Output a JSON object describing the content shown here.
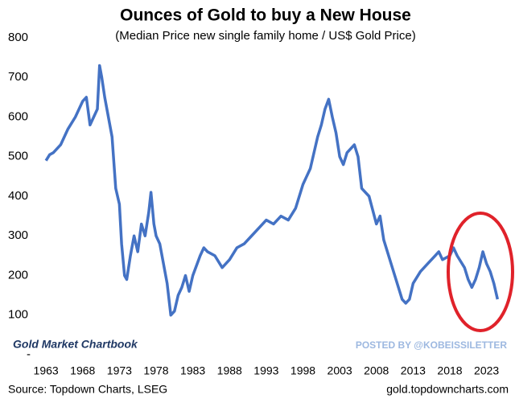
{
  "chart_data": {
    "type": "line",
    "title": "Ounces of Gold to buy a New House",
    "subtitle": "(Median Price new single family home / US$ Gold Price)",
    "brand": "Gold Market Chartbook",
    "watermark": "POSTED BY @KOBEISSILETTER",
    "source": "Source: Topdown Charts, LSEG",
    "website": "gold.topdowncharts.com",
    "color": "#4472c4",
    "grid": false,
    "xlim": [
      1962,
      2026
    ],
    "xticks": [
      1963,
      1968,
      1973,
      1978,
      1983,
      1988,
      1993,
      1998,
      2003,
      2008,
      2013,
      2018,
      2023
    ],
    "ylim": [
      0,
      800
    ],
    "yticks": [
      {
        "value": 0,
        "label": "-"
      },
      100,
      200,
      300,
      400,
      500,
      600,
      700,
      800
    ],
    "x": [
      1963,
      1963.5,
      1964,
      1965,
      1966,
      1967,
      1968,
      1968.5,
      1969,
      1969.5,
      1970,
      1970.3,
      1970.6,
      1971,
      1971.5,
      1972,
      1972.5,
      1973,
      1973.3,
      1973.7,
      1974,
      1974.5,
      1975,
      1975.5,
      1976,
      1976.5,
      1977,
      1977.3,
      1977.7,
      1978,
      1978.5,
      1979,
      1979.5,
      1980,
      1980.5,
      1981,
      1981.5,
      1982,
      1982.5,
      1983,
      1984,
      1984.5,
      1985,
      1986,
      1987,
      1988,
      1989,
      1990,
      1991,
      1992,
      1993,
      1994,
      1995,
      1996,
      1997,
      1998,
      1999,
      2000,
      2000.5,
      2001,
      2001.5,
      2002,
      2002.5,
      2003,
      2003.5,
      2004,
      2005,
      2005.5,
      2006,
      2007,
      2008,
      2008.5,
      2009,
      2010,
      2011,
      2011.5,
      2012,
      2012.5,
      2013,
      2014,
      2015,
      2016,
      2016.5,
      2017,
      2018,
      2018.5,
      2019,
      2020,
      2020.5,
      2021,
      2021.5,
      2022,
      2022.5,
      2023,
      2023.5,
      2024,
      2024.5
    ],
    "values": [
      490,
      505,
      510,
      530,
      570,
      600,
      640,
      650,
      580,
      600,
      620,
      730,
      700,
      650,
      600,
      550,
      420,
      380,
      280,
      200,
      190,
      250,
      300,
      260,
      330,
      300,
      360,
      410,
      330,
      300,
      280,
      230,
      180,
      100,
      110,
      150,
      170,
      200,
      160,
      200,
      250,
      270,
      260,
      250,
      220,
      240,
      270,
      280,
      300,
      320,
      340,
      330,
      350,
      340,
      370,
      430,
      470,
      550,
      580,
      620,
      645,
      600,
      560,
      500,
      480,
      510,
      530,
      500,
      420,
      400,
      330,
      350,
      290,
      230,
      170,
      140,
      130,
      140,
      180,
      210,
      230,
      250,
      260,
      240,
      250,
      270,
      250,
      220,
      190,
      170,
      190,
      220,
      260,
      230,
      210,
      180,
      140
    ]
  }
}
